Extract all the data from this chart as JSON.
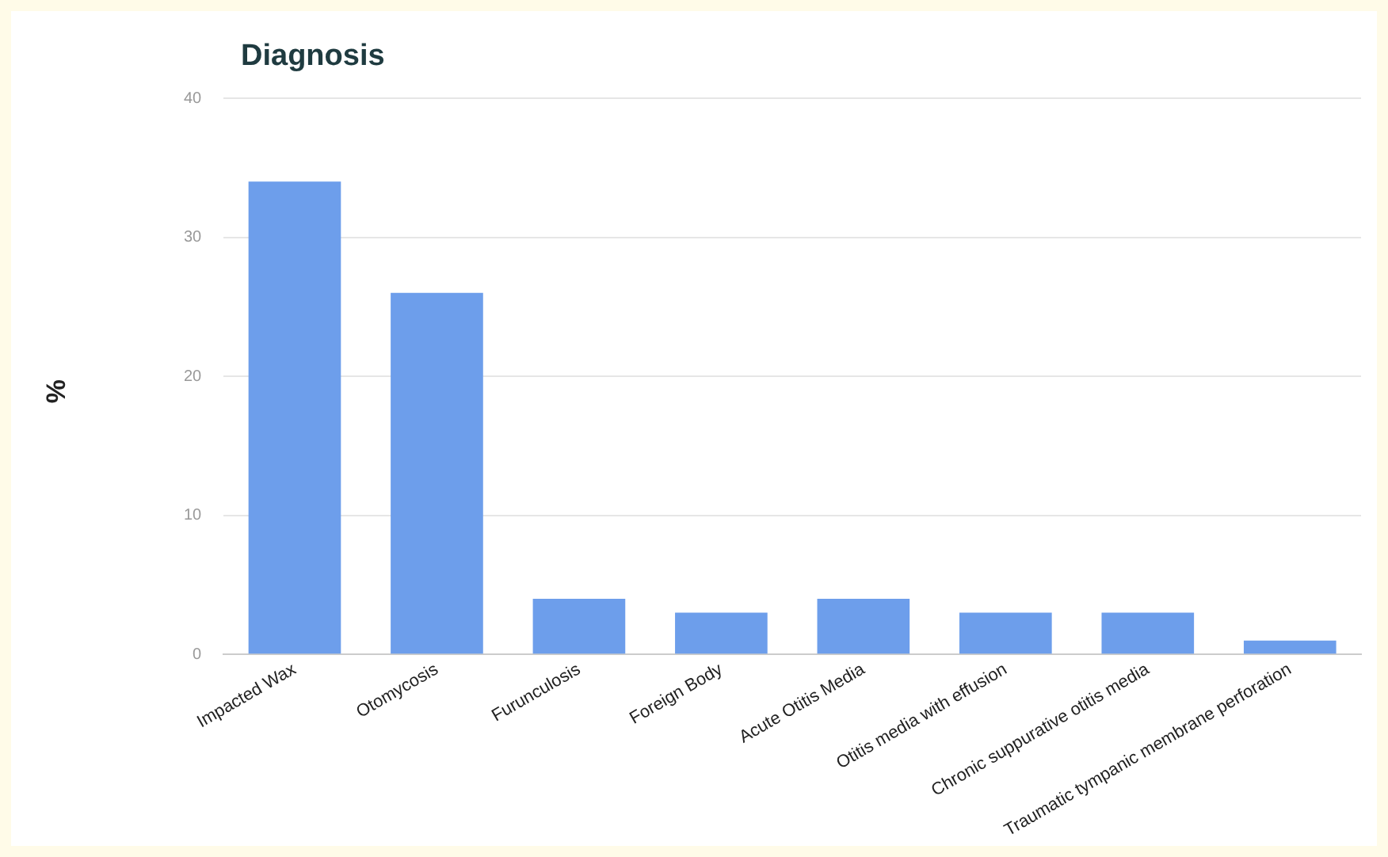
{
  "chart_data": {
    "type": "bar",
    "title": "Diagnosis",
    "ylabel": "%",
    "categories": [
      "Impacted Wax",
      "Otomycosis",
      "Furunculosis",
      "Foreign Body",
      "Acute Otitis Media",
      "Otitis media with effusion",
      "Chronic suppurative otitis media",
      "Traumatic tympanic membrane perforation"
    ],
    "values": [
      34,
      26,
      4,
      3,
      4,
      3,
      3,
      1
    ],
    "color": "#6d9eeb",
    "ylim": [
      0,
      40
    ],
    "yticks": [
      0,
      10,
      20,
      30,
      40
    ],
    "grid": "y",
    "legend": false
  }
}
